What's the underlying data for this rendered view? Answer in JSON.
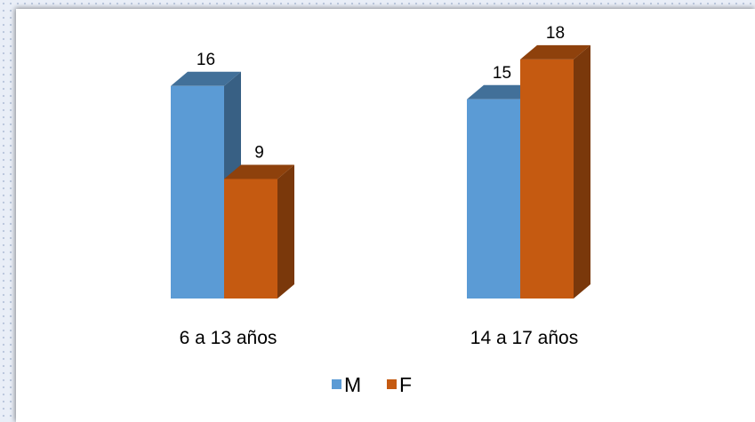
{
  "chart_data": {
    "type": "bar",
    "categories": [
      "6 a 13 años",
      "14 a 17 años"
    ],
    "series": [
      {
        "name": "M",
        "values": [
          16,
          15
        ],
        "color": "#5b9bd5"
      },
      {
        "name": "F",
        "values": [
          9,
          18
        ],
        "color": "#c55a11"
      }
    ],
    "data_labels": true,
    "ylim": [
      0,
      18
    ],
    "grid": false,
    "legend_position": "bottom",
    "style": "3d-column"
  }
}
